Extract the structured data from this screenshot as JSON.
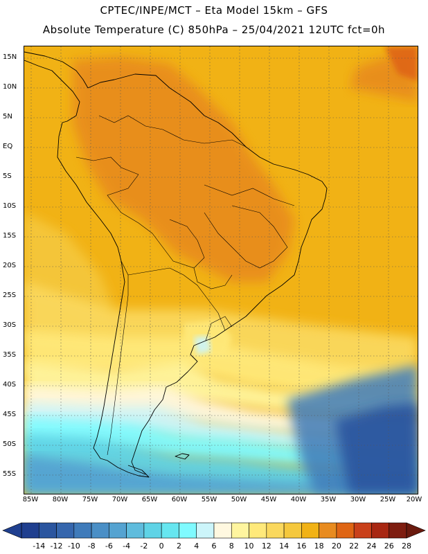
{
  "header": {
    "line1": "CPTEC/INPE/MCT  –   Eta Model 15km  –  GFS",
    "line2": "Absolute Temperature (C) 850hPa – 25/04/2021 12UTC fct=0h"
  },
  "lat_labels": [
    "15N",
    "10N",
    "5N",
    "EQ",
    "5S",
    "10S",
    "15S",
    "20S",
    "25S",
    "30S",
    "35S",
    "40S",
    "45S",
    "50S",
    "55S"
  ],
  "lon_labels": [
    "85W",
    "80W",
    "75W",
    "70W",
    "65W",
    "60W",
    "55W",
    "50W",
    "45W",
    "40W",
    "35W",
    "30W",
    "25W",
    "20W"
  ],
  "colorbar": {
    "labels": [
      "-14",
      "-12",
      "-10",
      "-8",
      "-6",
      "-4",
      "-2",
      "0",
      "2",
      "4",
      "6",
      "8",
      "10",
      "12",
      "14",
      "16",
      "18",
      "20",
      "22",
      "24",
      "26",
      "28"
    ],
    "colors": [
      "#1f3f8f",
      "#2a559f",
      "#3566ad",
      "#3f7bba",
      "#4a8fc6",
      "#55a3d1",
      "#5fbcdd",
      "#5fd3e6",
      "#66e6f0",
      "#7ffaff",
      "#ccf5fa",
      "#fff8e0",
      "#fff59f",
      "#ffe97a",
      "#fad85d",
      "#f5c83d",
      "#f1b215",
      "#e88b1f",
      "#df6514",
      "#c9401a",
      "#a82712",
      "#7e1d10"
    ]
  }
}
